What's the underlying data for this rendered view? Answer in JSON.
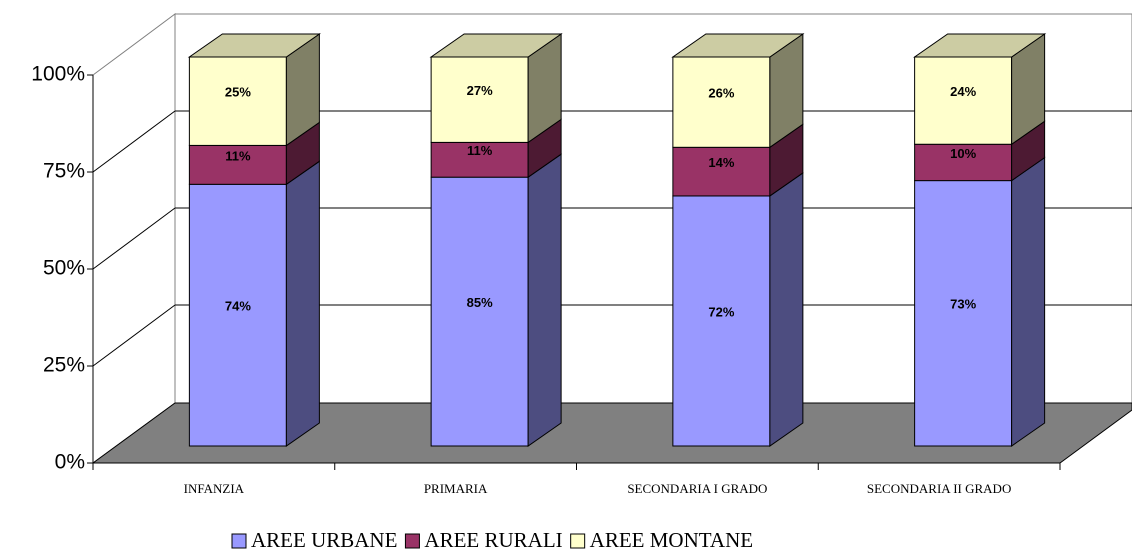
{
  "chart_data": {
    "type": "bar",
    "stacking": "percent",
    "categories": [
      "INFANZIA",
      "PRIMARIA",
      "SECONDARIA I GRADO",
      "SECONDARIA II GRADO"
    ],
    "series": [
      {
        "name": "AREE URBANE",
        "color": "#9999ff",
        "values": [
          74,
          85,
          72,
          73
        ],
        "value_labels": [
          "74%",
          "85%",
          "72%",
          "73%"
        ]
      },
      {
        "name": "AREE RURALI",
        "color": "#993366",
        "values": [
          11,
          11,
          14,
          10
        ],
        "value_labels": [
          "11%",
          "11%",
          "14%",
          "10%"
        ]
      },
      {
        "name": "AREE MONTANE",
        "color": "#ffffcc",
        "values": [
          25,
          27,
          26,
          24
        ],
        "value_labels": [
          "25%",
          "27%",
          "26%",
          "24%"
        ]
      }
    ],
    "ylim": [
      0,
      100
    ],
    "yticks": [
      {
        "value": 0,
        "label": "0%"
      },
      {
        "value": 25,
        "label": "25%"
      },
      {
        "value": 50,
        "label": "50%"
      },
      {
        "value": 75,
        "label": "75%"
      },
      {
        "value": 100,
        "label": "100%"
      }
    ],
    "grid": true,
    "legend": "bottom"
  }
}
